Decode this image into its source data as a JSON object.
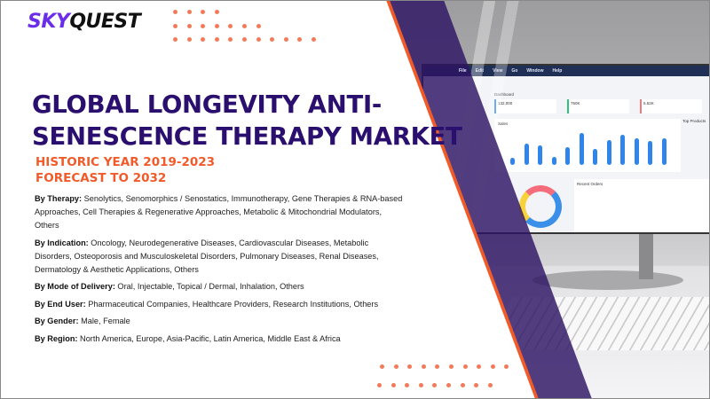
{
  "logo": {
    "part1": "SKY",
    "part2": "QUEST"
  },
  "title": {
    "line1": "GLOBAL LONGEVITY ANTI-",
    "line2": "SENESCENCE THERAPY MARKET"
  },
  "subtitle": {
    "historic": "HISTORIC YEAR 2019-2023",
    "forecast": "FORECAST TO 2032"
  },
  "segments": [
    {
      "label": "By Therapy:",
      "text": " Senolytics, Senomorphics / Senostatics, Immunotherapy, Gene Therapies & RNA-based Approaches, Cell Therapies & Regenerative Approaches, Metabolic & Mitochondrial Modulators, Others"
    },
    {
      "label": "By Indication:",
      "text": " Oncology, Neurodegenerative Diseases, Cardiovascular Diseases, Metabolic Disorders, Osteoporosis and Musculoskeletal Disorders, Pulmonary Diseases, Renal Diseases, Dermatology & Aesthetic Applications, Others"
    },
    {
      "label": "By Mode of Delivery:",
      "text": " Oral, Injectable, Topical / Dermal, Inhalation, Others"
    },
    {
      "label": "By End User:",
      "text": " Pharmaceutical Companies, Healthcare Providers, Research Institutions, Others"
    },
    {
      "label": "By Gender:",
      "text": " Male, Female"
    },
    {
      "label": "By Region:",
      "text": " North America, Europe, Asia-Pacific, Latin America, Middle East & Africa"
    }
  ],
  "photo": {
    "menu": [
      "File",
      "Edit",
      "View",
      "Go",
      "Window",
      "Help"
    ],
    "dashboard_label": "Dashboard",
    "cards": [
      "132,000",
      "750K",
      "5.52K"
    ],
    "chart_label": "Sales",
    "bar_levels": [
      0.2,
      0.6,
      0.55,
      0.22,
      0.5,
      0.9,
      0.45,
      0.7,
      0.85,
      0.75,
      0.68,
      0.75
    ],
    "recent_orders": "Recent Orders",
    "top_products": "Top Products"
  },
  "colors": {
    "brand_purple": "#2b0f6e",
    "accent_orange": "#f15a29",
    "logo_purple": "#6a2ee8"
  }
}
